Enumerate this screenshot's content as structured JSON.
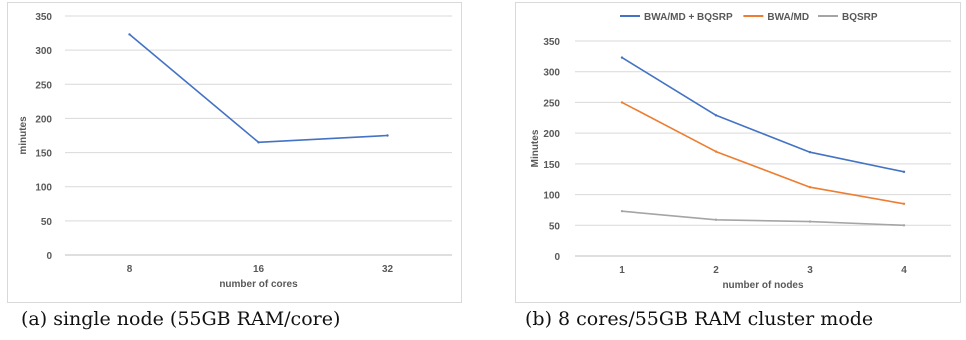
{
  "chart_data": [
    {
      "type": "line",
      "title": "",
      "caption": "(a) single node (55GB RAM/core)",
      "xlabel": "number of cores",
      "ylabel": "minutes",
      "categories": [
        "8",
        "16",
        "32"
      ],
      "ylim": [
        0,
        350
      ],
      "yticks": [
        0,
        50,
        100,
        150,
        200,
        250,
        300,
        350
      ],
      "grid": true,
      "legend": "none",
      "series": [
        {
          "name": "",
          "color": "#4472c4",
          "values": [
            323,
            165,
            175
          ]
        }
      ]
    },
    {
      "type": "line",
      "title": "",
      "caption": "(b) 8 cores/55GB RAM cluster mode",
      "xlabel": "number of nodes",
      "ylabel": "Minutes",
      "categories": [
        "1",
        "2",
        "3",
        "4"
      ],
      "ylim": [
        0,
        350
      ],
      "yticks": [
        0,
        50,
        100,
        150,
        200,
        250,
        300,
        350
      ],
      "grid": true,
      "legend": "top",
      "series": [
        {
          "name": "BWA/MD + BQSRP",
          "color": "#4472c4",
          "values": [
            323,
            229,
            169,
            137
          ]
        },
        {
          "name": "BWA/MD",
          "color": "#ed7d31",
          "values": [
            250,
            170,
            112,
            85
          ]
        },
        {
          "name": "BQSRP",
          "color": "#a5a5a5",
          "values": [
            73,
            59,
            56,
            50
          ]
        }
      ]
    }
  ]
}
